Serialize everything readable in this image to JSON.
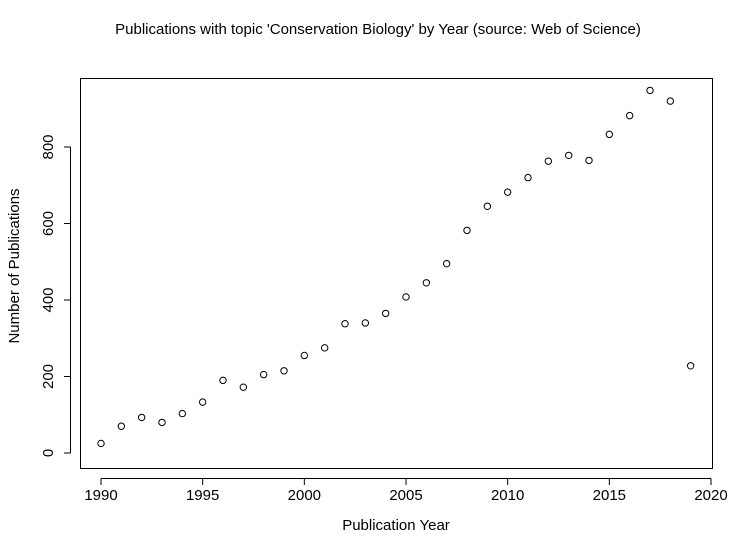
{
  "chart_data": {
    "type": "scatter",
    "title": "Publications with topic 'Conservation Biology' by Year (source: Web of Science)",
    "xlabel": "Publication Year",
    "ylabel": "Number of Publications",
    "xlim": [
      1990,
      2020
    ],
    "ylim": [
      0,
      950
    ],
    "x_ticks": [
      1990,
      1995,
      2000,
      2005,
      2010,
      2015,
      2020
    ],
    "y_ticks": [
      0,
      200,
      400,
      600,
      800
    ],
    "grid": false,
    "legend": "none",
    "points": [
      {
        "x": 1990,
        "y": 25
      },
      {
        "x": 1991,
        "y": 70
      },
      {
        "x": 1992,
        "y": 93
      },
      {
        "x": 1993,
        "y": 80
      },
      {
        "x": 1994,
        "y": 103
      },
      {
        "x": 1995,
        "y": 133
      },
      {
        "x": 1996,
        "y": 190
      },
      {
        "x": 1997,
        "y": 172
      },
      {
        "x": 1998,
        "y": 205
      },
      {
        "x": 1999,
        "y": 215
      },
      {
        "x": 2000,
        "y": 255
      },
      {
        "x": 2001,
        "y": 275
      },
      {
        "x": 2002,
        "y": 338
      },
      {
        "x": 2003,
        "y": 340
      },
      {
        "x": 2004,
        "y": 365
      },
      {
        "x": 2005,
        "y": 408
      },
      {
        "x": 2006,
        "y": 445
      },
      {
        "x": 2007,
        "y": 495
      },
      {
        "x": 2008,
        "y": 582
      },
      {
        "x": 2009,
        "y": 645
      },
      {
        "x": 2010,
        "y": 682
      },
      {
        "x": 2011,
        "y": 720
      },
      {
        "x": 2012,
        "y": 763
      },
      {
        "x": 2013,
        "y": 778
      },
      {
        "x": 2014,
        "y": 765
      },
      {
        "x": 2015,
        "y": 833
      },
      {
        "x": 2016,
        "y": 882
      },
      {
        "x": 2017,
        "y": 948
      },
      {
        "x": 2018,
        "y": 920
      },
      {
        "x": 2019,
        "y": 228
      }
    ]
  }
}
